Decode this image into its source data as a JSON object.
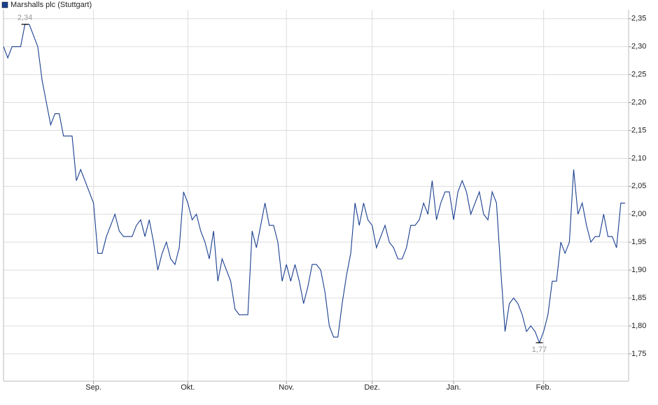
{
  "chart_data": {
    "type": "line",
    "series": [
      {
        "name": "Marshalls plc (Stuttgart)",
        "color": "#1a3f8f",
        "values": [
          2.3,
          2.28,
          2.3,
          2.3,
          2.3,
          2.34,
          2.34,
          2.32,
          2.3,
          2.24,
          2.2,
          2.16,
          2.18,
          2.18,
          2.14,
          2.14,
          2.14,
          2.06,
          2.08,
          2.06,
          2.04,
          2.02,
          1.93,
          1.93,
          1.96,
          1.98,
          2.0,
          1.97,
          1.96,
          1.96,
          1.96,
          1.98,
          1.99,
          1.96,
          1.99,
          1.95,
          1.9,
          1.93,
          1.95,
          1.92,
          1.91,
          1.94,
          2.04,
          2.02,
          1.99,
          2.0,
          1.97,
          1.95,
          1.92,
          1.97,
          1.88,
          1.92,
          1.9,
          1.88,
          1.83,
          1.82,
          1.82,
          1.82,
          1.97,
          1.94,
          1.98,
          2.02,
          1.98,
          1.98,
          1.95,
          1.88,
          1.91,
          1.88,
          1.91,
          1.88,
          1.84,
          1.87,
          1.91,
          1.91,
          1.9,
          1.86,
          1.8,
          1.78,
          1.78,
          1.84,
          1.89,
          1.93,
          2.02,
          1.98,
          2.02,
          1.99,
          1.98,
          1.94,
          1.96,
          1.98,
          1.95,
          1.94,
          1.92,
          1.92,
          1.94,
          1.98,
          1.98,
          1.99,
          2.02,
          2.0,
          2.06,
          1.99,
          2.02,
          2.04,
          2.04,
          1.99,
          2.04,
          2.06,
          2.04,
          2.0,
          2.02,
          2.04,
          2.0,
          1.99,
          2.04,
          2.02,
          1.9,
          1.79,
          1.84,
          1.85,
          1.84,
          1.82,
          1.79,
          1.8,
          1.79,
          1.77,
          1.79,
          1.82,
          1.88,
          1.88,
          1.95,
          1.93,
          1.95,
          2.08,
          2.0,
          2.02,
          1.98,
          1.95,
          1.96,
          1.96,
          2.0,
          1.96,
          1.96,
          1.94,
          2.02,
          2.02
        ],
        "value_labels": [
          null,
          null,
          null,
          null,
          null,
          "2,34",
          null,
          null,
          null,
          null,
          null,
          null,
          null,
          null,
          null,
          null,
          null,
          null,
          null,
          null,
          null,
          null,
          null,
          null,
          null,
          null,
          null,
          null,
          null,
          null,
          null,
          null,
          null,
          null,
          null,
          null,
          null,
          null,
          null,
          null,
          null,
          null,
          null,
          null,
          null,
          null,
          null,
          null,
          null,
          null,
          null,
          null,
          null,
          null,
          null,
          null,
          null,
          null,
          null,
          null,
          null,
          null,
          null,
          null,
          null,
          null,
          null,
          null,
          null,
          null,
          null,
          null,
          null,
          null,
          null,
          null,
          null,
          null,
          null,
          null,
          null,
          null,
          null,
          null,
          null,
          null,
          null,
          null,
          null,
          null,
          null,
          null,
          null,
          null,
          null,
          null,
          null,
          null,
          null,
          null,
          null,
          null,
          null,
          null,
          null,
          null,
          null,
          null,
          null,
          null,
          null,
          null,
          null,
          null,
          null,
          null,
          null,
          null,
          null,
          null,
          null,
          null,
          null,
          null,
          null,
          "1,77",
          null,
          null,
          null,
          null,
          null,
          null,
          null,
          null,
          null,
          null,
          null,
          null,
          null,
          null,
          null,
          null,
          null,
          null,
          null,
          null
        ]
      }
    ],
    "categories": [
      null,
      null,
      null,
      null,
      null,
      null,
      null,
      null,
      null,
      null,
      null,
      null,
      null,
      null,
      null,
      null,
      null,
      null,
      null,
      null,
      null,
      "Sep.",
      null,
      null,
      null,
      null,
      null,
      null,
      null,
      null,
      null,
      null,
      null,
      null,
      null,
      null,
      null,
      null,
      null,
      null,
      null,
      null,
      null,
      "Okt.",
      null,
      null,
      null,
      null,
      null,
      null,
      null,
      null,
      null,
      null,
      null,
      null,
      null,
      null,
      null,
      null,
      null,
      null,
      null,
      null,
      null,
      null,
      "Nov.",
      null,
      null,
      null,
      null,
      null,
      null,
      null,
      null,
      null,
      null,
      null,
      null,
      null,
      null,
      null,
      null,
      null,
      null,
      null,
      "Dez.",
      null,
      null,
      null,
      null,
      null,
      null,
      null,
      null,
      null,
      null,
      null,
      null,
      null,
      null,
      null,
      null,
      null,
      null,
      "Jan.",
      null,
      null,
      null,
      null,
      null,
      null,
      null,
      null,
      null,
      null,
      null,
      null,
      null,
      null,
      null,
      null,
      null,
      null,
      null,
      null,
      "Feb.",
      null,
      null,
      null,
      null,
      null,
      null,
      null,
      null,
      null,
      null,
      null,
      null,
      null,
      null,
      null,
      null,
      null,
      null,
      null
    ],
    "ylim": [
      1.701,
      2.366
    ],
    "yticks": [
      {
        "value": 1.75,
        "label": "1,75"
      },
      {
        "value": 1.8,
        "label": "1,80"
      },
      {
        "value": 1.85,
        "label": "1,85"
      },
      {
        "value": 1.9,
        "label": "1,90"
      },
      {
        "value": 1.95,
        "label": "1,95"
      },
      {
        "value": 2.0,
        "label": "2,00"
      },
      {
        "value": 2.05,
        "label": "2,05"
      },
      {
        "value": 2.1,
        "label": "2,10"
      },
      {
        "value": 2.15,
        "label": "2,15"
      },
      {
        "value": 2.2,
        "label": "2,20"
      },
      {
        "value": 2.25,
        "label": "2,25"
      },
      {
        "value": 2.3,
        "label": "2,30"
      },
      {
        "value": 2.35,
        "label": "2,35"
      }
    ],
    "grid": true,
    "legend": "top-left"
  }
}
